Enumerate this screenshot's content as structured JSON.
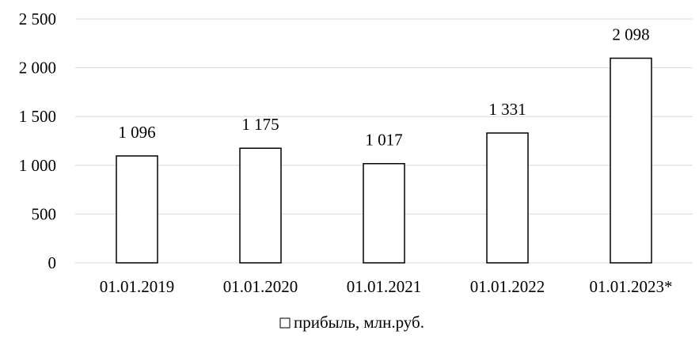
{
  "chart_data": {
    "type": "bar",
    "categories": [
      "01.01.2019",
      "01.01.2020",
      "01.01.2021",
      "01.01.2022",
      "01.01.2023*"
    ],
    "series": [
      {
        "name": "прибыль, млн.руб.",
        "values": [
          1096,
          1175,
          1017,
          1331,
          2098
        ],
        "value_labels": [
          "1 096",
          "1 175",
          "1 017",
          "1 331",
          "2 098"
        ]
      }
    ],
    "ylim": [
      0,
      2500
    ],
    "yticks": [
      0,
      500,
      1000,
      1500,
      2000,
      2500
    ],
    "ytick_labels": [
      "0",
      "500",
      "1 000",
      "1 500",
      "2 000",
      "2 500"
    ],
    "grid": true,
    "legend_position": "bottom",
    "colors": {
      "bar_fill": "#ffffff",
      "bar_stroke": "#000000",
      "grid": "#d9d9d9",
      "axis": "#d9d9d9"
    }
  }
}
